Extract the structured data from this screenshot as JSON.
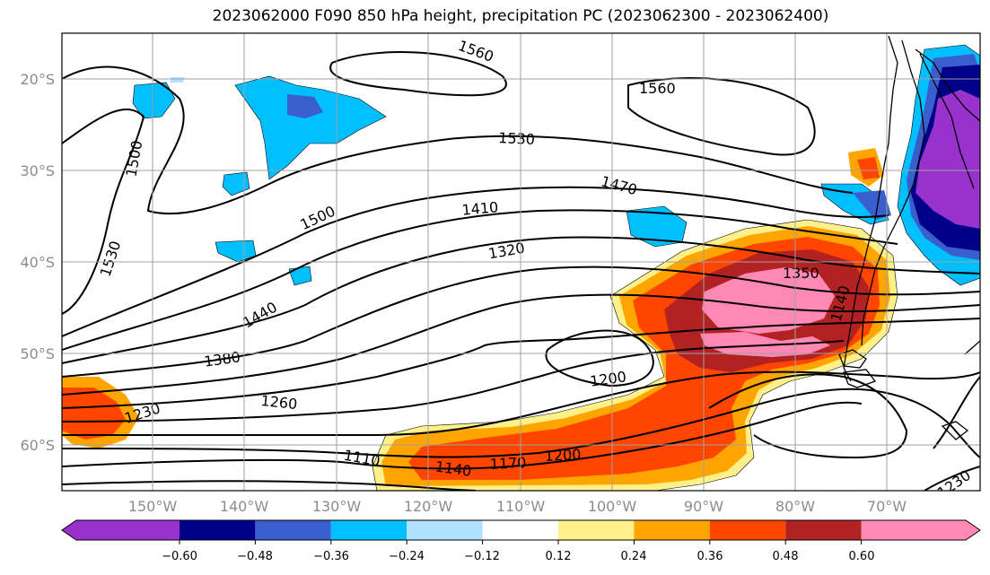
{
  "title": "2023062000 F090 850 hPa height, precipitation PC (2023062300 - 2023062400)",
  "lat_labels": [
    "20°S",
    "30°S",
    "40°S",
    "50°S",
    "60°S"
  ],
  "lon_labels": [
    "150°W",
    "140°W",
    "130°W",
    "120°W",
    "110°W",
    "100°W",
    "90°W",
    "80°W",
    "70°W"
  ],
  "contour_labels": [
    "1560",
    "1560",
    "1530",
    "1530",
    "1500",
    "1500",
    "1470",
    "1410",
    "1320",
    "1440",
    "1350",
    "1380",
    "1200",
    "1260",
    "1230",
    "1110",
    "1140",
    "1170",
    "1200",
    "1230",
    "1140"
  ],
  "colorbar": {
    "colors": [
      "#9932cc",
      "#00008b",
      "#3a5fcd",
      "#00bfff",
      "#b0e2ff",
      "#ffffff",
      "#fff08a",
      "#ffa500",
      "#ff4500",
      "#b22222",
      "#ff88b4"
    ],
    "tick_labels": [
      "−0.60",
      "−0.48",
      "−0.36",
      "−0.24",
      "−0.12",
      "0.12",
      "0.24",
      "0.36",
      "0.48",
      "0.60"
    ]
  }
}
